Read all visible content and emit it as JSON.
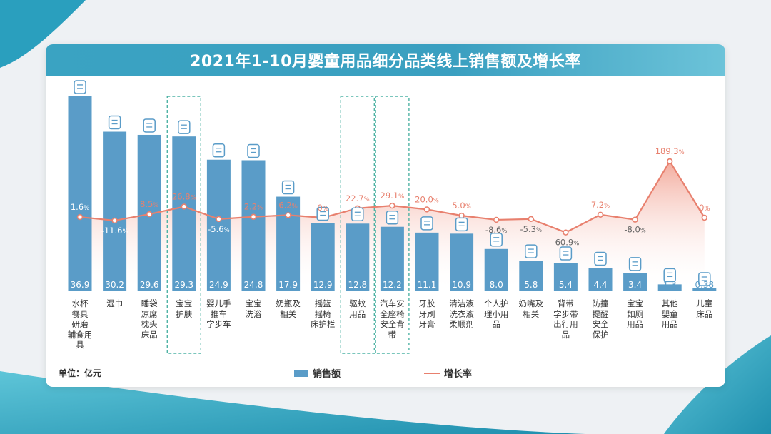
{
  "chart_data": {
    "type": "bar",
    "title": "2021年1-10月婴童用品细分品类线上销售额及增长率",
    "unit_label": "单位：亿元",
    "categories": [
      "水杯\n餐具\n研磨\n辅食用\n具",
      "湿巾",
      "睡袋\n凉席\n枕头\n床品",
      "宝宝\n护肤",
      "婴儿手\n推车\n学步车",
      "宝宝\n洗浴",
      "奶瓶及\n相关",
      "摇篮\n摇椅\n床护栏",
      "驱蚊\n用品",
      "汽车安\n全座椅\n安全背\n带",
      "牙胶\n牙刷\n牙膏",
      "清洁液\n洗衣液\n柔顺剂",
      "个人护\n理小用\n品",
      "奶嘴及\n相关",
      "背带\n学步带\n出行用\n品",
      "防撞\n提醒\n安全\n保护",
      "宝宝\n如厕\n用品",
      "其他\n婴童\n用品",
      "儿童\n床品"
    ],
    "series": [
      {
        "name": "销售额",
        "values": [
          36.9,
          30.2,
          29.6,
          29.3,
          24.9,
          24.8,
          17.9,
          12.9,
          12.8,
          12.2,
          11.1,
          10.9,
          8.0,
          5.8,
          5.4,
          4.4,
          3.4,
          1.3,
          0.38
        ],
        "value_labels": [
          "36.9",
          "30.2",
          "29.6",
          "29.3",
          "24.9",
          "24.8",
          "17.9",
          "12.9",
          "12.8",
          "12.2",
          "11.1",
          "10.9",
          "8.0",
          "5.8",
          "5.4",
          "4.4",
          "3.4",
          "1.3",
          "0.38"
        ]
      },
      {
        "name": "增长率",
        "values": [
          1.6,
          -11.6,
          8.5,
          26.8,
          -5.6,
          2.2,
          6.2,
          0,
          22.7,
          29.1,
          20.0,
          5.0,
          -8.6,
          -5.3,
          -60.9,
          7.2,
          -8.0,
          189.3,
          0
        ],
        "value_labels": [
          "1.6",
          "-11.6",
          "8.5",
          "26.8",
          "-5.6",
          "2.2",
          "6.2",
          "0",
          "22.7",
          "29.1",
          "20.0",
          "5.0",
          "-8.6",
          "-5.3",
          "-60.9",
          "7.2",
          "-8.0",
          "189.3",
          "0"
        ],
        "suffix": "%"
      }
    ],
    "highlighted_categories": [
      3,
      8,
      9
    ],
    "legend_placement": "bottom-center",
    "grid": false
  },
  "legend": {
    "bar_label": "销售额",
    "line_label": "增长率"
  },
  "colors": {
    "bar": "#5a9cc8",
    "line": "#e8806e",
    "title_bg": "#3aa3c2",
    "highlight_border": "#4fb3a5"
  },
  "icons": [
    "sippy-cup-icon",
    "wet-wipes-icon",
    "bedding-icon",
    "lotion-jar-icon",
    "stroller-icon",
    "bath-bottle-icon",
    "baby-bottle-icon",
    "cradle-icon",
    "repellent-bottle-icon",
    "car-seat-icon",
    "toothbrush-icon",
    "detergent-icon",
    "first-aid-kit-icon",
    "pacifier-icon",
    "baby-carrier-icon",
    "warning-icon",
    "potty-icon",
    "onesie-icon",
    "crib-icon"
  ]
}
